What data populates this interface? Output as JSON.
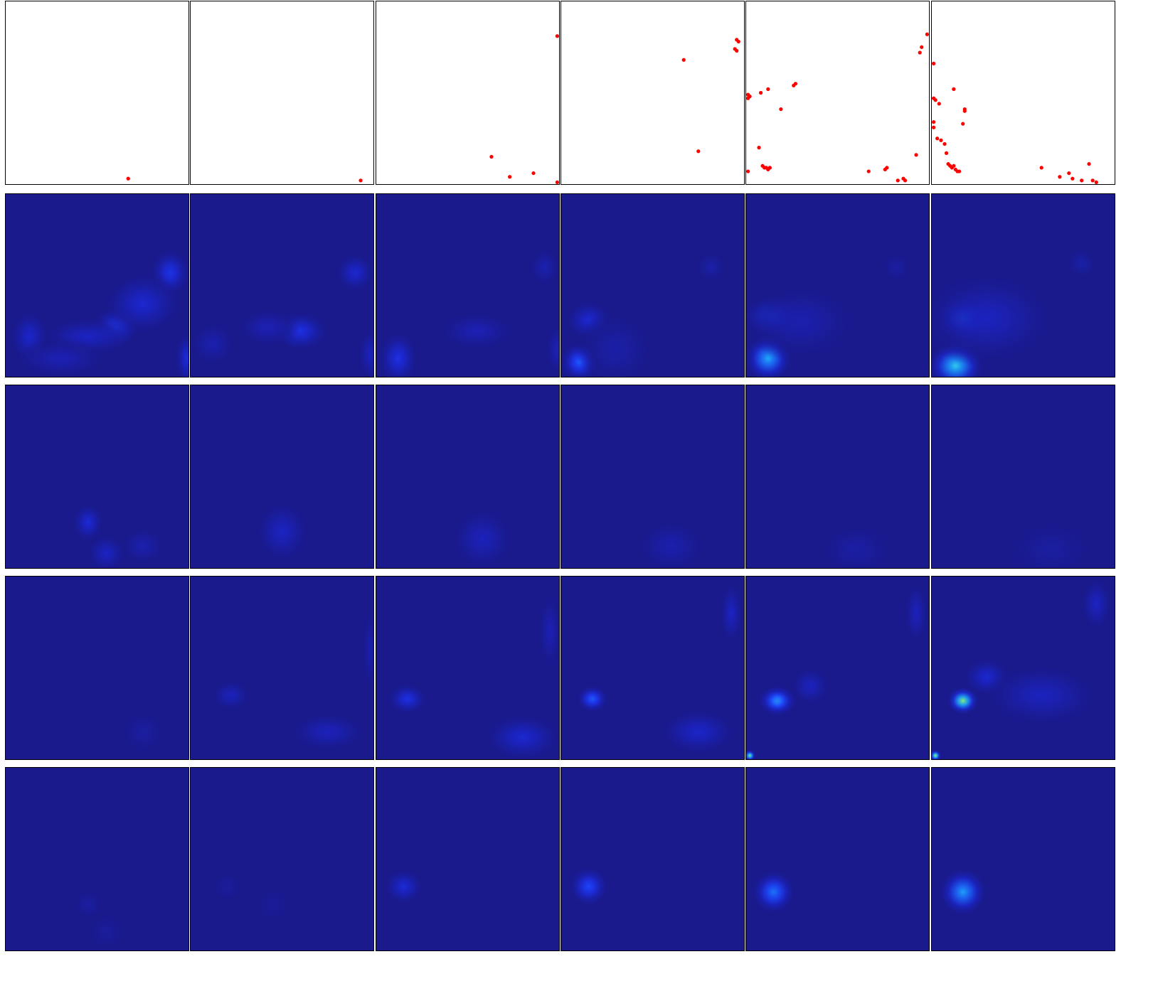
{
  "colors": {
    "background": "#ffffff",
    "panel_border": "#000000",
    "scatter_point": "#ff0000",
    "heatmap_base": "#1a1a8c",
    "colormap": [
      "#1a1a8c",
      "#1b24c8",
      "#1e3cff",
      "#1a80ff",
      "#22d2ff",
      "#a6ff5a",
      "#ffff00"
    ]
  },
  "chart_data": [
    {
      "type": "scatter",
      "row": 0,
      "xlim": [
        0,
        1
      ],
      "ylim": [
        0,
        1
      ],
      "grid": false,
      "panels": [
        [
          [
            0.67,
            0.03
          ]
        ],
        [
          [
            0.93,
            0.02
          ]
        ],
        [
          [
            0.99,
            0.81
          ],
          [
            0.63,
            0.15
          ],
          [
            0.73,
            0.04
          ],
          [
            0.86,
            0.06
          ],
          [
            0.99,
            0.01
          ]
        ],
        [
          [
            0.96,
            0.79
          ],
          [
            0.97,
            0.78
          ],
          [
            0.95,
            0.74
          ],
          [
            0.96,
            0.73
          ],
          [
            0.67,
            0.68
          ],
          [
            0.75,
            0.18
          ]
        ],
        [
          [
            0.99,
            0.82
          ],
          [
            0.96,
            0.75
          ],
          [
            0.95,
            0.72
          ],
          [
            0.01,
            0.49
          ],
          [
            0.02,
            0.48
          ],
          [
            0.01,
            0.47
          ],
          [
            0.08,
            0.5
          ],
          [
            0.12,
            0.52
          ],
          [
            0.26,
            0.54
          ],
          [
            0.27,
            0.55
          ],
          [
            0.19,
            0.41
          ],
          [
            0.07,
            0.2
          ],
          [
            0.09,
            0.1
          ],
          [
            0.1,
            0.09
          ],
          [
            0.11,
            0.09
          ],
          [
            0.12,
            0.08
          ],
          [
            0.13,
            0.09
          ],
          [
            0.01,
            0.07
          ],
          [
            0.67,
            0.07
          ],
          [
            0.76,
            0.08
          ],
          [
            0.77,
            0.09
          ],
          [
            0.83,
            0.02
          ],
          [
            0.86,
            0.03
          ],
          [
            0.87,
            0.02
          ],
          [
            0.93,
            0.16
          ]
        ],
        [
          [
            0.01,
            0.66
          ],
          [
            0.01,
            0.47
          ],
          [
            0.02,
            0.46
          ],
          [
            0.04,
            0.44
          ],
          [
            0.12,
            0.52
          ],
          [
            0.18,
            0.41
          ],
          [
            0.18,
            0.4
          ],
          [
            0.17,
            0.33
          ],
          [
            0.01,
            0.34
          ],
          [
            0.01,
            0.31
          ],
          [
            0.03,
            0.25
          ],
          [
            0.05,
            0.24
          ],
          [
            0.07,
            0.22
          ],
          [
            0.08,
            0.17
          ],
          [
            0.09,
            0.11
          ],
          [
            0.1,
            0.1
          ],
          [
            0.11,
            0.09
          ],
          [
            0.12,
            0.1
          ],
          [
            0.13,
            0.08
          ],
          [
            0.14,
            0.07
          ],
          [
            0.15,
            0.07
          ],
          [
            0.6,
            0.09
          ],
          [
            0.7,
            0.04
          ],
          [
            0.75,
            0.06
          ],
          [
            0.77,
            0.03
          ],
          [
            0.82,
            0.02
          ],
          [
            0.86,
            0.11
          ],
          [
            0.88,
            0.02
          ],
          [
            0.9,
            0.01
          ]
        ]
      ]
    },
    {
      "type": "heatmap",
      "row": 1,
      "xlim": [
        0,
        1
      ],
      "ylim": [
        0,
        1
      ],
      "value_range": [
        0,
        1
      ],
      "panels": [
        [
          {
            "x": 0.6,
            "y": 0.27,
            "value": 0.32,
            "sx": 0.06,
            "sy": 0.05
          },
          {
            "x": 0.9,
            "y": 0.57,
            "value": 0.28,
            "sx": 0.05,
            "sy": 0.06
          },
          {
            "x": 0.75,
            "y": 0.4,
            "value": 0.2,
            "sx": 0.1,
            "sy": 0.08
          },
          {
            "x": 0.45,
            "y": 0.22,
            "value": 0.16,
            "sx": 0.12,
            "sy": 0.05
          },
          {
            "x": 0.13,
            "y": 0.22,
            "value": 0.18,
            "sx": 0.05,
            "sy": 0.07
          },
          {
            "x": 0.99,
            "y": 0.1,
            "value": 0.22,
            "sx": 0.03,
            "sy": 0.07
          },
          {
            "x": 0.3,
            "y": 0.1,
            "value": 0.12,
            "sx": 0.12,
            "sy": 0.05
          }
        ],
        [
          {
            "x": 0.6,
            "y": 0.25,
            "value": 0.26,
            "sx": 0.07,
            "sy": 0.05
          },
          {
            "x": 0.9,
            "y": 0.57,
            "value": 0.2,
            "sx": 0.05,
            "sy": 0.05
          },
          {
            "x": 0.42,
            "y": 0.27,
            "value": 0.12,
            "sx": 0.08,
            "sy": 0.05
          },
          {
            "x": 0.12,
            "y": 0.18,
            "value": 0.1,
            "sx": 0.06,
            "sy": 0.06
          },
          {
            "x": 0.98,
            "y": 0.12,
            "value": 0.14,
            "sx": 0.03,
            "sy": 0.07
          }
        ],
        [
          {
            "x": 0.12,
            "y": 0.1,
            "value": 0.26,
            "sx": 0.05,
            "sy": 0.07
          },
          {
            "x": 0.55,
            "y": 0.25,
            "value": 0.12,
            "sx": 0.1,
            "sy": 0.05
          },
          {
            "x": 0.92,
            "y": 0.6,
            "value": 0.1,
            "sx": 0.04,
            "sy": 0.05
          },
          {
            "x": 0.99,
            "y": 0.15,
            "value": 0.12,
            "sx": 0.03,
            "sy": 0.07
          }
        ],
        [
          {
            "x": 0.1,
            "y": 0.08,
            "value": 0.42,
            "sx": 0.05,
            "sy": 0.05
          },
          {
            "x": 0.15,
            "y": 0.31,
            "value": 0.2,
            "sx": 0.06,
            "sy": 0.05
          },
          {
            "x": 0.82,
            "y": 0.6,
            "value": 0.08,
            "sx": 0.04,
            "sy": 0.04
          },
          {
            "x": 0.3,
            "y": 0.15,
            "value": 0.08,
            "sx": 0.1,
            "sy": 0.1
          }
        ],
        [
          {
            "x": 0.12,
            "y": 0.1,
            "value": 0.6,
            "sx": 0.06,
            "sy": 0.06
          },
          {
            "x": 0.14,
            "y": 0.33,
            "value": 0.36,
            "sx": 0.07,
            "sy": 0.05
          },
          {
            "x": 0.3,
            "y": 0.3,
            "value": 0.1,
            "sx": 0.15,
            "sy": 0.1
          },
          {
            "x": 0.82,
            "y": 0.6,
            "value": 0.06,
            "sx": 0.04,
            "sy": 0.04
          }
        ],
        [
          {
            "x": 0.13,
            "y": 0.06,
            "value": 0.68,
            "sx": 0.07,
            "sy": 0.06
          },
          {
            "x": 0.17,
            "y": 0.32,
            "value": 0.48,
            "sx": 0.06,
            "sy": 0.05
          },
          {
            "x": 0.3,
            "y": 0.32,
            "value": 0.15,
            "sx": 0.18,
            "sy": 0.12
          },
          {
            "x": 0.82,
            "y": 0.62,
            "value": 0.08,
            "sx": 0.04,
            "sy": 0.04
          }
        ]
      ]
    },
    {
      "type": "heatmap",
      "row": 2,
      "xlim": [
        0,
        1
      ],
      "ylim": [
        0,
        1
      ],
      "value_range": [
        0,
        1
      ],
      "panels": [
        [
          {
            "x": 0.45,
            "y": 0.25,
            "value": 0.22,
            "sx": 0.04,
            "sy": 0.05
          },
          {
            "x": 0.55,
            "y": 0.08,
            "value": 0.16,
            "sx": 0.05,
            "sy": 0.05
          },
          {
            "x": 0.75,
            "y": 0.12,
            "value": 0.1,
            "sx": 0.06,
            "sy": 0.05
          }
        ],
        [
          {
            "x": 0.5,
            "y": 0.2,
            "value": 0.16,
            "sx": 0.07,
            "sy": 0.08
          }
        ],
        [
          {
            "x": 0.58,
            "y": 0.16,
            "value": 0.14,
            "sx": 0.08,
            "sy": 0.08
          }
        ],
        [
          {
            "x": 0.6,
            "y": 0.12,
            "value": 0.1,
            "sx": 0.09,
            "sy": 0.07
          }
        ],
        [
          {
            "x": 0.6,
            "y": 0.1,
            "value": 0.07,
            "sx": 0.1,
            "sy": 0.07
          }
        ],
        [
          {
            "x": 0.65,
            "y": 0.1,
            "value": 0.06,
            "sx": 0.12,
            "sy": 0.08
          }
        ]
      ]
    },
    {
      "type": "heatmap",
      "row": 3,
      "xlim": [
        0,
        1
      ],
      "ylim": [
        0,
        1
      ],
      "value_range": [
        0,
        1
      ],
      "panels": [
        [
          {
            "x": 0.75,
            "y": 0.15,
            "value": 0.06,
            "sx": 0.06,
            "sy": 0.06
          }
        ],
        [
          {
            "x": 0.22,
            "y": 0.35,
            "value": 0.14,
            "sx": 0.05,
            "sy": 0.04
          },
          {
            "x": 0.75,
            "y": 0.15,
            "value": 0.14,
            "sx": 0.1,
            "sy": 0.05
          },
          {
            "x": 0.98,
            "y": 0.6,
            "value": 0.1,
            "sx": 0.02,
            "sy": 0.1
          }
        ],
        [
          {
            "x": 0.17,
            "y": 0.33,
            "value": 0.26,
            "sx": 0.05,
            "sy": 0.04
          },
          {
            "x": 0.8,
            "y": 0.12,
            "value": 0.2,
            "sx": 0.1,
            "sy": 0.06
          },
          {
            "x": 0.95,
            "y": 0.7,
            "value": 0.12,
            "sx": 0.03,
            "sy": 0.1
          }
        ],
        [
          {
            "x": 0.17,
            "y": 0.33,
            "value": 0.42,
            "sx": 0.04,
            "sy": 0.035
          },
          {
            "x": 0.75,
            "y": 0.15,
            "value": 0.18,
            "sx": 0.1,
            "sy": 0.06
          },
          {
            "x": 0.93,
            "y": 0.8,
            "value": 0.16,
            "sx": 0.03,
            "sy": 0.08
          }
        ],
        [
          {
            "x": 0.17,
            "y": 0.32,
            "value": 0.95,
            "sx": 0.025,
            "sy": 0.025
          },
          {
            "x": 0.17,
            "y": 0.32,
            "value": 0.5,
            "sx": 0.05,
            "sy": 0.04
          },
          {
            "x": 0.35,
            "y": 0.4,
            "value": 0.15,
            "sx": 0.05,
            "sy": 0.05
          },
          {
            "x": 0.93,
            "y": 0.8,
            "value": 0.14,
            "sx": 0.03,
            "sy": 0.08
          },
          {
            "x": 0.02,
            "y": 0.02,
            "value": 0.8,
            "sx": 0.015,
            "sy": 0.015
          }
        ],
        [
          {
            "x": 0.17,
            "y": 0.32,
            "value": 0.8,
            "sx": 0.04,
            "sy": 0.035
          },
          {
            "x": 0.3,
            "y": 0.45,
            "value": 0.2,
            "sx": 0.06,
            "sy": 0.05
          },
          {
            "x": 0.6,
            "y": 0.35,
            "value": 0.15,
            "sx": 0.15,
            "sy": 0.08
          },
          {
            "x": 0.9,
            "y": 0.85,
            "value": 0.16,
            "sx": 0.04,
            "sy": 0.07
          },
          {
            "x": 0.02,
            "y": 0.02,
            "value": 0.85,
            "sx": 0.015,
            "sy": 0.015
          }
        ]
      ]
    },
    {
      "type": "heatmap",
      "row": 4,
      "xlim": [
        0,
        1
      ],
      "ylim": [
        0,
        1
      ],
      "value_range": [
        0,
        1
      ],
      "panels": [
        [
          {
            "x": 0.45,
            "y": 0.25,
            "value": 0.06,
            "sx": 0.04,
            "sy": 0.04
          },
          {
            "x": 0.55,
            "y": 0.1,
            "value": 0.05,
            "sx": 0.05,
            "sy": 0.05
          }
        ],
        [
          {
            "x": 0.2,
            "y": 0.35,
            "value": 0.05,
            "sx": 0.04,
            "sy": 0.04
          },
          {
            "x": 0.45,
            "y": 0.25,
            "value": 0.04,
            "sx": 0.05,
            "sy": 0.05
          }
        ],
        [
          {
            "x": 0.15,
            "y": 0.35,
            "value": 0.22,
            "sx": 0.05,
            "sy": 0.045
          }
        ],
        [
          {
            "x": 0.15,
            "y": 0.35,
            "value": 0.36,
            "sx": 0.05,
            "sy": 0.05
          }
        ],
        [
          {
            "x": 0.15,
            "y": 0.32,
            "value": 0.48,
            "sx": 0.055,
            "sy": 0.055
          }
        ],
        [
          {
            "x": 0.17,
            "y": 0.32,
            "value": 0.58,
            "sx": 0.06,
            "sy": 0.06
          }
        ]
      ]
    }
  ]
}
